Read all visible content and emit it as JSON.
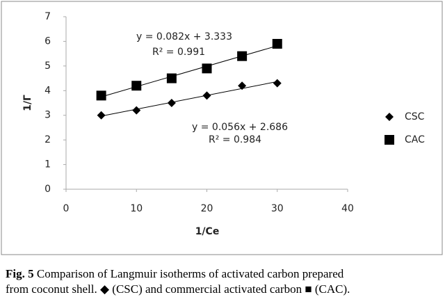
{
  "chart_data": {
    "type": "scatter",
    "x": [
      5,
      10,
      15,
      20,
      25,
      30
    ],
    "series": [
      {
        "name": "CSC",
        "color": "#000000",
        "marker": "diamond",
        "values": [
          3.0,
          3.2,
          3.5,
          3.8,
          4.2,
          4.3
        ]
      },
      {
        "name": "CAC",
        "color": "#000000",
        "marker": "square",
        "values": [
          3.8,
          4.2,
          4.5,
          4.9,
          5.4,
          5.9
        ]
      }
    ],
    "trendline": true,
    "annotations": [
      "y = 0.082x + 3.333",
      "R² = 0.991",
      "y = 0.056x + 2.686",
      "R² = 0.984"
    ],
    "xlabel": "1/Ce",
    "ylabel": "1/Γ",
    "xlim": [
      0,
      40
    ],
    "xticks": [
      0,
      10,
      20,
      30,
      40
    ],
    "ylim": [
      0,
      7
    ],
    "yticks": [
      0,
      1,
      2,
      3,
      4,
      5,
      6,
      7
    ],
    "legend": "right"
  },
  "caption": {
    "label": "Fig. 5",
    "lines": [
      " Comparison of Langmuir isotherms of activated carbon prepared",
      "from coconut shell. ◆ (CSC) and commercial activated carbon ■ (CAC)."
    ]
  }
}
